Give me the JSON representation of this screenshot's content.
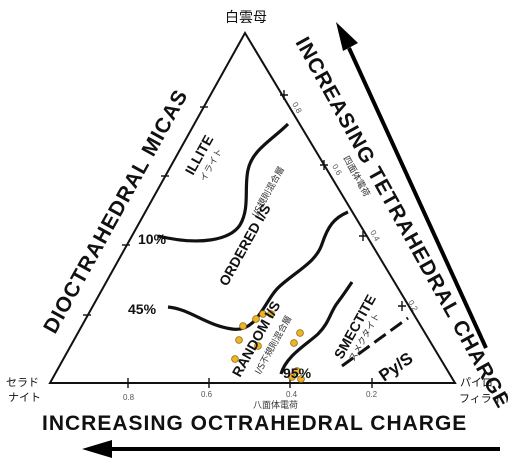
{
  "vertices": {
    "top": "白雲母",
    "left_line1": "セラド",
    "left_line2": "ナイト",
    "right_line1": "パイロ",
    "right_line2": "フィライト"
  },
  "axes": {
    "left_side": "DIOCTRAHEDRAL MICAS",
    "right_side": "INCREASING TETRAHEDRAL CHARGE",
    "right_side_jp": "四面体電荷",
    "bottom": "INCREASING OCTRAHEDRAL CHARGE",
    "bottom_jp": "八面体電荷"
  },
  "ticks": {
    "bottom": [
      "0.8",
      "0.6",
      "0.4",
      "0.2"
    ],
    "right": [
      "0.8",
      "0.6",
      "0.4",
      "0.2"
    ]
  },
  "fields": {
    "illite": "ILLITE",
    "illite_jp": "イライト",
    "ordered": "ORDERED I/S",
    "ordered_jp": "I/S規則混合層",
    "random": "RANDOM I/S",
    "random_jp": "I/S不規則混合層",
    "smectite": "SMECTITE",
    "smectite_jp": "スメクタイト",
    "pys": "Py/S"
  },
  "percent_labels": [
    "10%",
    "45%",
    "95%"
  ],
  "colors": {
    "ink": "#111111",
    "dots": "#f0b429"
  }
}
